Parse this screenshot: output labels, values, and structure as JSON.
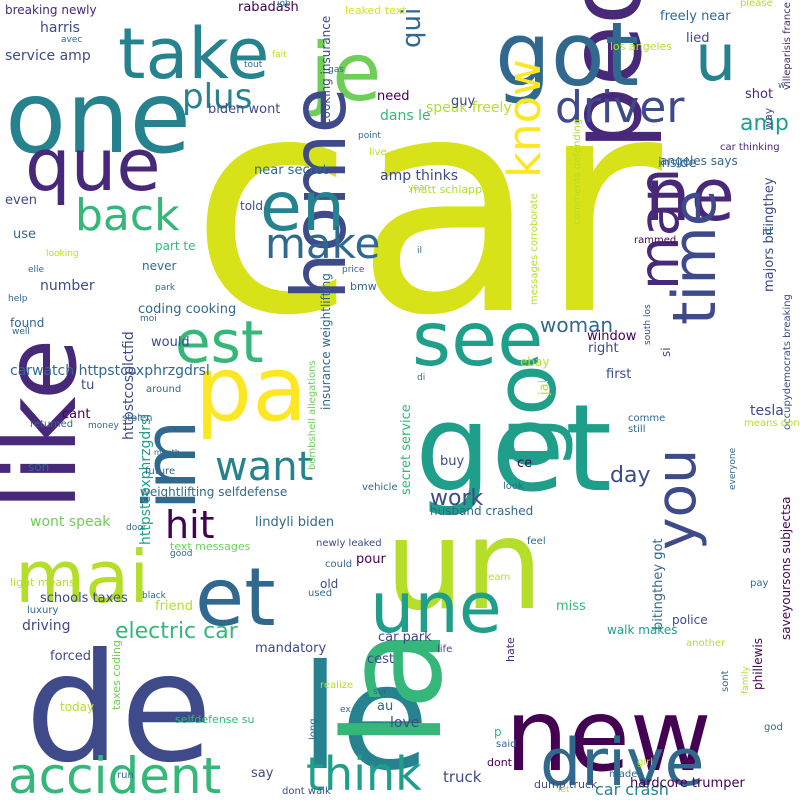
{
  "title": "Word cloud",
  "palette": [
    "#440154",
    "#482878",
    "#3e4a89",
    "#31688e",
    "#26828e",
    "#1f9e89",
    "#35b779",
    "#6ece58",
    "#b5de2b",
    "#fde725"
  ],
  "words": [
    {
      "text": "car",
      "weight": 100,
      "color": "#d7e219"
    },
    {
      "text": "de",
      "weight": 70,
      "color": "#3e4a89"
    },
    {
      "text": "le",
      "weight": 65,
      "color": "#26828e"
    },
    {
      "text": "la",
      "weight": 62,
      "color": "#35b779"
    },
    {
      "text": "un",
      "weight": 60,
      "color": "#b5de2b"
    },
    {
      "text": "get",
      "weight": 58,
      "color": "#1f9e89"
    },
    {
      "text": "like",
      "weight": 55,
      "color": "#482878"
    },
    {
      "text": "new",
      "weight": 52,
      "color": "#440154"
    },
    {
      "text": "people",
      "weight": 50,
      "color": "#482878"
    },
    {
      "text": "one",
      "weight": 48,
      "color": "#26828e"
    },
    {
      "text": "got",
      "weight": 46,
      "color": "#31688e"
    },
    {
      "text": "pa",
      "weight": 45,
      "color": "#fde725"
    },
    {
      "text": "go",
      "weight": 44,
      "color": "#1f9e89"
    },
    {
      "text": "je",
      "weight": 42,
      "color": "#6ece58"
    },
    {
      "text": "que",
      "weight": 40,
      "color": "#482878"
    },
    {
      "text": "et",
      "weight": 40,
      "color": "#31688e"
    },
    {
      "text": "home",
      "weight": 38,
      "color": "#3e4a89"
    },
    {
      "text": "take",
      "weight": 36,
      "color": "#26828e"
    },
    {
      "text": "mai",
      "weight": 36,
      "color": "#b5de2b"
    },
    {
      "text": "ne",
      "weight": 35,
      "color": "#482878"
    },
    {
      "text": "see",
      "weight": 34,
      "color": "#1f9e89"
    },
    {
      "text": "im",
      "weight": 34,
      "color": "#31688e"
    },
    {
      "text": "une",
      "weight": 34,
      "color": "#1f9e89"
    },
    {
      "text": "drive",
      "weight": 33,
      "color": "#31688e"
    },
    {
      "text": "en",
      "weight": 32,
      "color": "#26828e"
    },
    {
      "text": "est",
      "weight": 30,
      "color": "#35b779"
    },
    {
      "text": "u",
      "weight": 30,
      "color": "#26828e"
    },
    {
      "text": "time",
      "weight": 30,
      "color": "#3e4a89"
    },
    {
      "text": "accident",
      "weight": 28,
      "color": "#35b779"
    },
    {
      "text": "you",
      "weight": 28,
      "color": "#3e4a89"
    },
    {
      "text": "man",
      "weight": 28,
      "color": "#482878"
    },
    {
      "text": "think",
      "weight": 26,
      "color": "#1f9e89"
    },
    {
      "text": "know",
      "weight": 24,
      "color": "#fde725"
    },
    {
      "text": "driver",
      "weight": 24,
      "color": "#3e4a89"
    },
    {
      "text": "back",
      "weight": 24,
      "color": "#35b779"
    },
    {
      "text": "make",
      "weight": 22,
      "color": "#31688e"
    },
    {
      "text": "want",
      "weight": 22,
      "color": "#26828e"
    },
    {
      "text": "hit",
      "weight": 22,
      "color": "#440154"
    },
    {
      "text": "plus",
      "weight": 20,
      "color": "#26828e"
    },
    {
      "text": "qui",
      "weight": 18,
      "color": "#31688e"
    },
    {
      "text": "woman",
      "weight": 14,
      "color": "#31688e"
    },
    {
      "text": "work",
      "weight": 14,
      "color": "#3e4a89"
    },
    {
      "text": "amp",
      "weight": 14,
      "color": "#1f9e89"
    },
    {
      "text": "day",
      "weight": 14,
      "color": "#3e4a89"
    },
    {
      "text": "electric car",
      "weight": 12,
      "color": "#35b779"
    },
    {
      "text": "car crash",
      "weight": 10,
      "color": "#26828e"
    },
    {
      "text": "truck",
      "weight": 10,
      "color": "#3e4a89"
    },
    {
      "text": "carwatch httpstcoxphrzgdrsl",
      "weight": 9,
      "color": "#31688e"
    },
    {
      "text": "httpstcoxphrzgdrsl",
      "weight": 9,
      "color": "#1f9e89"
    },
    {
      "text": "httpstcosplctfid",
      "weight": 9,
      "color": "#3e4a89"
    },
    {
      "text": "secret service",
      "weight": 8,
      "color": "#35b779"
    },
    {
      "text": "insurance weightlifting",
      "weight": 8,
      "color": "#31688e"
    },
    {
      "text": "speak freely",
      "weight": 8,
      "color": "#b5de2b"
    },
    {
      "text": "near secret",
      "weight": 8,
      "color": "#31688e"
    },
    {
      "text": "amp thinks",
      "weight": 8,
      "color": "#3e4a89"
    },
    {
      "text": "coding cooking",
      "weight": 8,
      "color": "#31688e"
    },
    {
      "text": "cooking insurance",
      "weight": 7,
      "color": "#3e4a89"
    },
    {
      "text": "lindyli biden",
      "weight": 8,
      "color": "#31688e"
    },
    {
      "text": "wont speak",
      "weight": 8,
      "color": "#6ece58"
    },
    {
      "text": "schools taxes",
      "weight": 8,
      "color": "#3e4a89"
    },
    {
      "text": "freely near",
      "weight": 8,
      "color": "#31688e"
    },
    {
      "text": "biden wont",
      "weight": 8,
      "color": "#3e4a89"
    },
    {
      "text": "service amp",
      "weight": 8,
      "color": "#3e4a89"
    },
    {
      "text": "majors bitingthey",
      "weight": 8,
      "color": "#3e4a89"
    },
    {
      "text": "bitingthey got",
      "weight": 7,
      "color": "#31688e"
    },
    {
      "text": "saveyoursons subjectsa",
      "weight": 7,
      "color": "#440154"
    },
    {
      "text": "car park",
      "weight": 8,
      "color": "#3e4a89"
    },
    {
      "text": "window",
      "weight": 8,
      "color": "#440154"
    },
    {
      "text": "tesla",
      "weight": 8,
      "color": "#3e4a89"
    },
    {
      "text": "mandatory",
      "weight": 8,
      "color": "#3e4a89"
    },
    {
      "text": "driving",
      "weight": 8,
      "color": "#3e4a89"
    },
    {
      "text": "husband crashed",
      "weight": 6,
      "color": "#31688e"
    },
    {
      "text": "weightlifting selfdefense",
      "weight": 6,
      "color": "#31688e"
    },
    {
      "text": "hardcore trumper",
      "weight": 7,
      "color": "#440154"
    },
    {
      "text": "text messages",
      "weight": 5,
      "color": "#6ece58"
    },
    {
      "text": "taxes coding",
      "weight": 5,
      "color": "#6ece58"
    },
    {
      "text": "selfdefense su",
      "weight": 5,
      "color": "#35b779"
    },
    {
      "text": "bombshell allegations",
      "weight": 5,
      "color": "#6ece58"
    },
    {
      "text": "breaking newly",
      "weight": 6,
      "color": "#482878"
    },
    {
      "text": "rabadash",
      "weight": 6,
      "color": "#440154"
    },
    {
      "text": "leaked text",
      "weight": 5,
      "color": "#d7e219"
    },
    {
      "text": "los angeles",
      "weight": 5,
      "color": "#b5de2b"
    },
    {
      "text": "angeles says",
      "weight": 6,
      "color": "#31688e"
    },
    {
      "text": "car thinking",
      "weight": 5,
      "color": "#482878"
    },
    {
      "text": "occupydemocrats breaking",
      "weight": 5,
      "color": "#3e4a89"
    },
    {
      "text": "villeparisis france",
      "weight": 4,
      "color": "#482878"
    },
    {
      "text": "messages corroborate",
      "weight": 4,
      "color": "#b5de2b"
    },
    {
      "text": "comments defending",
      "weight": 4,
      "color": "#b5de2b"
    },
    {
      "text": "matt schlapp",
      "weight": 4,
      "color": "#b5de2b"
    },
    {
      "text": "south los",
      "weight": 5,
      "color": "#3e4a89"
    },
    {
      "text": "walk makes",
      "weight": 4,
      "color": "#1f9e89"
    },
    {
      "text": "newly leaked",
      "weight": 5,
      "color": "#3e4a89"
    },
    {
      "text": "dont walk",
      "weight": 4,
      "color": "#3e4a89"
    },
    {
      "text": "light means",
      "weight": 4,
      "color": "#b5de2b"
    },
    {
      "text": "dump truck",
      "weight": 5,
      "color": "#3e4a89"
    },
    {
      "text": "phillewis",
      "weight": 5,
      "color": "#440154"
    },
    {
      "text": "dans le",
      "weight": 6,
      "color": "#35b779"
    },
    {
      "text": "harris",
      "weight": 9,
      "color": "#3e4a89"
    },
    {
      "text": "need",
      "weight": 9,
      "color": "#440154"
    },
    {
      "text": "guy",
      "weight": 8,
      "color": "#3e4a89"
    },
    {
      "text": "lied",
      "weight": 8,
      "color": "#3e4a89"
    },
    {
      "text": "shot",
      "weight": 8,
      "color": "#482878"
    },
    {
      "text": "way",
      "weight": 8,
      "color": "#3e4a89"
    },
    {
      "text": "even",
      "weight": 6,
      "color": "#3e4a89"
    },
    {
      "text": "use",
      "weight": 8,
      "color": "#31688e"
    },
    {
      "text": "part te",
      "weight": 7,
      "color": "#35b779"
    },
    {
      "text": "told",
      "weight": 8,
      "color": "#3e4a89"
    },
    {
      "text": "never",
      "weight": 8,
      "color": "#31688e"
    },
    {
      "text": "number",
      "weight": 8,
      "color": "#3e4a89"
    },
    {
      "text": "would",
      "weight": 8,
      "color": "#3e4a89"
    },
    {
      "text": "tu",
      "weight": 8,
      "color": "#3e4a89"
    },
    {
      "text": "cant",
      "weight": 8,
      "color": "#440154"
    },
    {
      "text": "son",
      "weight": 8,
      "color": "#31688e"
    },
    {
      "text": "inside",
      "weight": 8,
      "color": "#31688e"
    },
    {
      "text": "first",
      "weight": 8,
      "color": "#3e4a89"
    },
    {
      "text": "right",
      "weight": 8,
      "color": "#3e4a89"
    },
    {
      "text": "jai",
      "weight": 8,
      "color": "#b5de2b"
    },
    {
      "text": "ebay",
      "weight": 8,
      "color": "#b5de2b"
    },
    {
      "text": "si",
      "weight": 7,
      "color": "#3e4a89"
    },
    {
      "text": "ce",
      "weight": 7,
      "color": "#440154"
    },
    {
      "text": "buy",
      "weight": 8,
      "color": "#3e4a89"
    },
    {
      "text": "pour",
      "weight": 8,
      "color": "#440154"
    },
    {
      "text": "old",
      "weight": 8,
      "color": "#3e4a89"
    },
    {
      "text": "friend",
      "weight": 7,
      "color": "#b5de2b"
    },
    {
      "text": "miss",
      "weight": 8,
      "color": "#35b779"
    },
    {
      "text": "hate",
      "weight": 8,
      "color": "#482878"
    },
    {
      "text": "cest",
      "weight": 8,
      "color": "#3e4a89"
    },
    {
      "text": "forced",
      "weight": 6,
      "color": "#3e4a89"
    },
    {
      "text": "today",
      "weight": 8,
      "color": "#b5de2b"
    },
    {
      "text": "au",
      "weight": 8,
      "color": "#31688e"
    },
    {
      "text": "love",
      "weight": 7,
      "color": "#3e4a89"
    },
    {
      "text": "say",
      "weight": 8,
      "color": "#3e4a89"
    },
    {
      "text": "p",
      "weight": 8,
      "color": "#35b779"
    },
    {
      "text": "dont",
      "weight": 8,
      "color": "#440154"
    },
    {
      "text": "police",
      "weight": 7,
      "color": "#3e4a89"
    },
    {
      "text": "life",
      "weight": 6,
      "color": "#3e4a89"
    },
    {
      "text": "realize",
      "weight": 7,
      "color": "#b5de2b"
    },
    {
      "text": "luxury",
      "weight": 5,
      "color": "#31688e"
    },
    {
      "text": "long",
      "weight": 5,
      "color": "#31688e"
    },
    {
      "text": "around",
      "weight": 5,
      "color": "#31688e"
    },
    {
      "text": "stolen",
      "weight": 5,
      "color": "#31688e"
    },
    {
      "text": "future",
      "weight": 5,
      "color": "#31688e"
    },
    {
      "text": "returned",
      "weight": 5,
      "color": "#31688e"
    },
    {
      "text": "month",
      "weight": 5,
      "color": "#31688e"
    },
    {
      "text": "money",
      "weight": 5,
      "color": "#31688e"
    },
    {
      "text": "door",
      "weight": 4,
      "color": "#31688e"
    },
    {
      "text": "good",
      "weight": 4,
      "color": "#31688e"
    },
    {
      "text": "run",
      "weight": 4,
      "color": "#31688e"
    },
    {
      "text": "ex",
      "weight": 4,
      "color": "#31688e"
    },
    {
      "text": "sur",
      "weight": 4,
      "color": "#31688e"
    },
    {
      "text": "god",
      "weight": 4,
      "color": "#31688e"
    },
    {
      "text": "girl",
      "weight": 4,
      "color": "#b5de2b"
    },
    {
      "text": "made",
      "weight": 4,
      "color": "#31688e"
    },
    {
      "text": "let",
      "weight": 4,
      "color": "#b5de2b"
    },
    {
      "text": "said",
      "weight": 4,
      "color": "#31688e"
    },
    {
      "text": "sont",
      "weight": 4,
      "color": "#31688e"
    },
    {
      "text": "pay",
      "weight": 4,
      "color": "#31688e"
    },
    {
      "text": "another",
      "weight": 4,
      "color": "#b5de2b"
    },
    {
      "text": "used",
      "weight": 4,
      "color": "#31688e"
    },
    {
      "text": "could",
      "weight": 4,
      "color": "#31688e"
    },
    {
      "text": "vehicle",
      "weight": 4,
      "color": "#31688e"
    },
    {
      "text": "look",
      "weight": 4,
      "color": "#31688e"
    },
    {
      "text": "feel",
      "weight": 4,
      "color": "#31688e"
    },
    {
      "text": "dream",
      "weight": 4,
      "color": "#b5de2b"
    },
    {
      "text": "bmw",
      "weight": 4,
      "color": "#31688e"
    },
    {
      "text": "price",
      "weight": 4,
      "color": "#31688e"
    },
    {
      "text": "di",
      "weight": 4,
      "color": "#31688e"
    },
    {
      "text": "il",
      "weight": 4,
      "color": "#31688e"
    },
    {
      "text": "rammed",
      "weight": 5,
      "color": "#440154"
    },
    {
      "text": "comme",
      "weight": 4,
      "color": "#31688e"
    },
    {
      "text": "still",
      "weight": 4,
      "color": "#31688e"
    },
    {
      "text": "means dont",
      "weight": 4,
      "color": "#b5de2b"
    },
    {
      "text": "everyone",
      "weight": 4,
      "color": "#31688e"
    },
    {
      "text": "point",
      "weight": 4,
      "color": "#31688e"
    },
    {
      "text": "live",
      "weight": 4,
      "color": "#b5de2b"
    },
    {
      "text": "year",
      "weight": 4,
      "color": "#b5de2b"
    },
    {
      "text": "id",
      "weight": 4,
      "color": "#31688e"
    },
    {
      "text": "please",
      "weight": 4,
      "color": "#b5de2b"
    },
    {
      "text": "job",
      "weight": 4,
      "color": "#31688e"
    },
    {
      "text": "gas",
      "weight": 4,
      "color": "#31688e"
    },
    {
      "text": "fait",
      "weight": 4,
      "color": "#b5de2b"
    },
    {
      "text": "tout",
      "weight": 5,
      "color": "#31688e"
    },
    {
      "text": "avec",
      "weight": 4,
      "color": "#31688e"
    },
    {
      "text": "looking",
      "weight": 4,
      "color": "#b5de2b"
    },
    {
      "text": "elle",
      "weight": 4,
      "color": "#31688e"
    },
    {
      "text": "help",
      "weight": 4,
      "color": "#31688e"
    },
    {
      "text": "found",
      "weight": 4,
      "color": "#31688e"
    },
    {
      "text": "park",
      "weight": 4,
      "color": "#31688e"
    },
    {
      "text": "moi",
      "weight": 4,
      "color": "#31688e"
    },
    {
      "text": "well",
      "weight": 4,
      "color": "#31688e"
    },
    {
      "text": "black",
      "weight": 4,
      "color": "#31688e"
    },
    {
      "text": "w",
      "weight": 5,
      "color": "#31688e"
    },
    {
      "text": "family",
      "weight": 4,
      "color": "#b5de2b"
    },
    {
      "text": "high",
      "weight": 4,
      "color": "#b5de2b"
    },
    {
      "text": "government",
      "weight": 4,
      "color": "#31688e"
    },
    {
      "text": "r",
      "weight": 4,
      "color": "#b5de2b"
    },
    {
      "text": "f",
      "weight": 4,
      "color": "#31688e"
    },
    {
      "text": "c",
      "weight": 4,
      "color": "#31688e"
    }
  ]
}
